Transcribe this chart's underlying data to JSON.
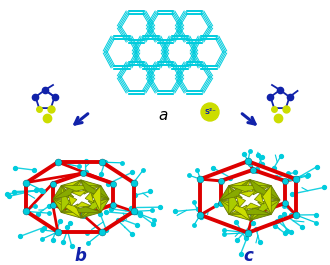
{
  "background_color": "#ffffff",
  "title_a": "a",
  "title_b": "b",
  "title_c": "c",
  "cyan_color": "#00CCDD",
  "red_color": "#DD0000",
  "blue_color": "#1122AA",
  "yellow_color": "#CCDD00",
  "s2_label": "S²⁻",
  "label_fontsize": 11,
  "fig_width": 3.3,
  "fig_height": 2.65,
  "dpi": 100
}
